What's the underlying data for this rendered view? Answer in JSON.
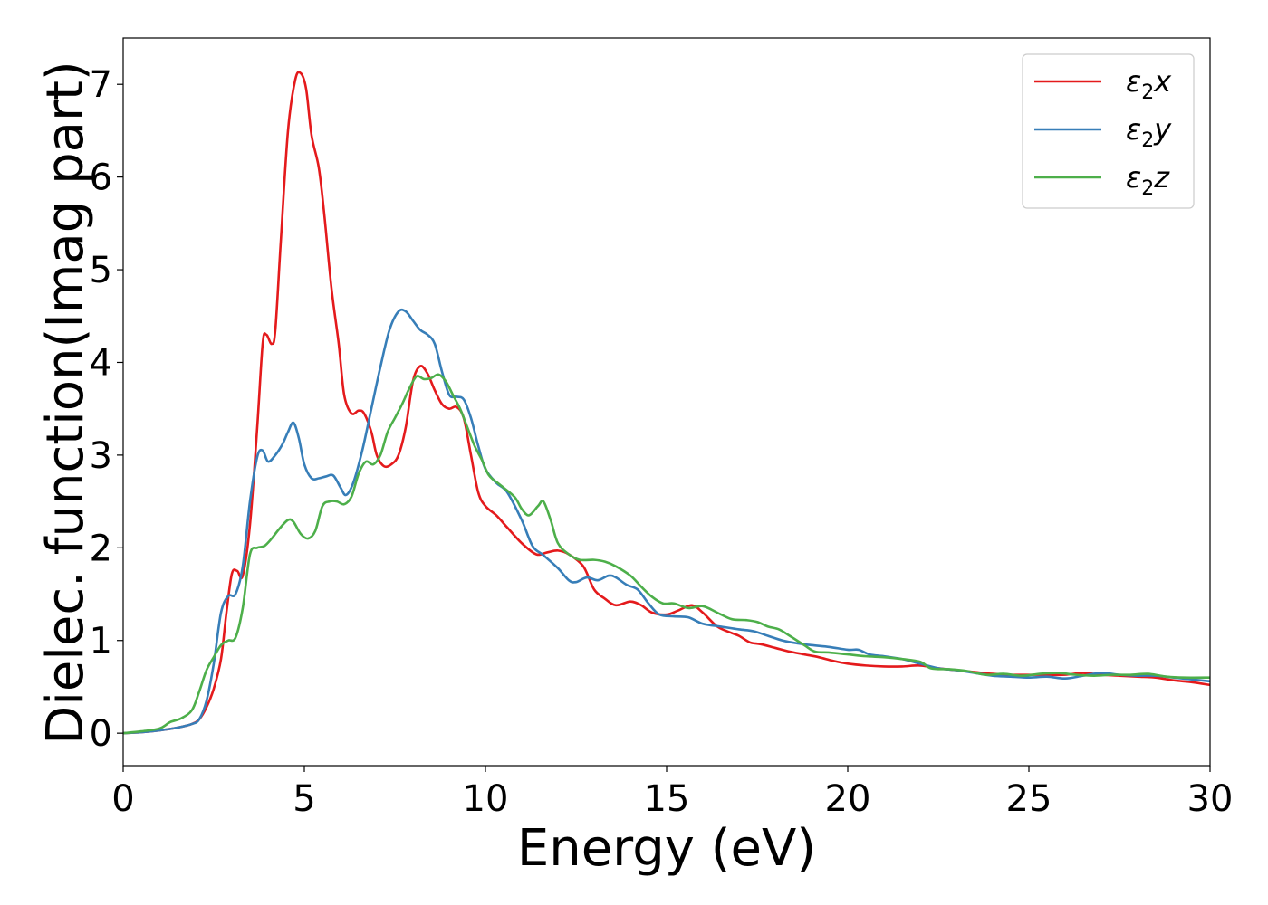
{
  "chart_data": {
    "type": "line",
    "xlabel": "Energy (eV)",
    "ylabel": "Dielec. function(Imag part)",
    "xlim": [
      0,
      30
    ],
    "ylim": [
      -0.35,
      7.5
    ],
    "xticks": [
      0,
      5,
      10,
      15,
      20,
      25,
      30
    ],
    "yticks": [
      0,
      1,
      2,
      3,
      4,
      5,
      6,
      7
    ],
    "grid": false,
    "legend_position": "top-right",
    "series": [
      {
        "name": "ε₂x",
        "legend_base": "ε",
        "legend_sub": "2",
        "legend_suffix": "x",
        "color": "#e41a1c",
        "points": [
          [
            0,
            0
          ],
          [
            0.5,
            0.01
          ],
          [
            1.0,
            0.03
          ],
          [
            1.5,
            0.06
          ],
          [
            1.9,
            0.1
          ],
          [
            2.1,
            0.15
          ],
          [
            2.3,
            0.28
          ],
          [
            2.5,
            0.48
          ],
          [
            2.7,
            0.8
          ],
          [
            2.85,
            1.3
          ],
          [
            3.0,
            1.72
          ],
          [
            3.15,
            1.75
          ],
          [
            3.3,
            1.7
          ],
          [
            3.5,
            2.25
          ],
          [
            3.7,
            3.3
          ],
          [
            3.85,
            4.2
          ],
          [
            3.95,
            4.3
          ],
          [
            4.1,
            4.2
          ],
          [
            4.2,
            4.35
          ],
          [
            4.35,
            5.3
          ],
          [
            4.55,
            6.5
          ],
          [
            4.75,
            7.05
          ],
          [
            4.9,
            7.12
          ],
          [
            5.05,
            6.95
          ],
          [
            5.2,
            6.45
          ],
          [
            5.4,
            6.1
          ],
          [
            5.55,
            5.6
          ],
          [
            5.75,
            4.8
          ],
          [
            5.95,
            4.2
          ],
          [
            6.1,
            3.65
          ],
          [
            6.3,
            3.45
          ],
          [
            6.5,
            3.48
          ],
          [
            6.65,
            3.45
          ],
          [
            6.85,
            3.25
          ],
          [
            7.0,
            3.0
          ],
          [
            7.2,
            2.88
          ],
          [
            7.4,
            2.9
          ],
          [
            7.6,
            3.0
          ],
          [
            7.8,
            3.3
          ],
          [
            8.0,
            3.8
          ],
          [
            8.2,
            3.96
          ],
          [
            8.4,
            3.88
          ],
          [
            8.6,
            3.7
          ],
          [
            8.8,
            3.55
          ],
          [
            9.0,
            3.5
          ],
          [
            9.2,
            3.52
          ],
          [
            9.4,
            3.4
          ],
          [
            9.6,
            3.0
          ],
          [
            9.8,
            2.6
          ],
          [
            10.0,
            2.45
          ],
          [
            10.3,
            2.35
          ],
          [
            10.6,
            2.22
          ],
          [
            11.0,
            2.05
          ],
          [
            11.4,
            1.93
          ],
          [
            11.7,
            1.95
          ],
          [
            12.0,
            1.97
          ],
          [
            12.3,
            1.93
          ],
          [
            12.7,
            1.8
          ],
          [
            13.0,
            1.55
          ],
          [
            13.3,
            1.45
          ],
          [
            13.6,
            1.38
          ],
          [
            14.0,
            1.42
          ],
          [
            14.3,
            1.38
          ],
          [
            14.6,
            1.3
          ],
          [
            15.0,
            1.28
          ],
          [
            15.3,
            1.32
          ],
          [
            15.7,
            1.38
          ],
          [
            16.0,
            1.3
          ],
          [
            16.4,
            1.15
          ],
          [
            16.8,
            1.08
          ],
          [
            17.0,
            1.05
          ],
          [
            17.3,
            0.98
          ],
          [
            17.6,
            0.96
          ],
          [
            18.0,
            0.92
          ],
          [
            18.4,
            0.88
          ],
          [
            18.8,
            0.85
          ],
          [
            19.2,
            0.82
          ],
          [
            19.6,
            0.78
          ],
          [
            20.0,
            0.75
          ],
          [
            20.5,
            0.73
          ],
          [
            21.0,
            0.72
          ],
          [
            21.5,
            0.72
          ],
          [
            22.0,
            0.73
          ],
          [
            22.5,
            0.7
          ],
          [
            23.0,
            0.68
          ],
          [
            23.5,
            0.66
          ],
          [
            24.0,
            0.64
          ],
          [
            24.5,
            0.63
          ],
          [
            25.0,
            0.63
          ],
          [
            25.5,
            0.63
          ],
          [
            26.0,
            0.63
          ],
          [
            26.5,
            0.65
          ],
          [
            27.0,
            0.63
          ],
          [
            27.5,
            0.62
          ],
          [
            28.0,
            0.61
          ],
          [
            28.5,
            0.6
          ],
          [
            29.0,
            0.57
          ],
          [
            29.5,
            0.55
          ],
          [
            30.0,
            0.52
          ]
        ]
      },
      {
        "name": "ε₂y",
        "legend_base": "ε",
        "legend_sub": "2",
        "legend_suffix": "y",
        "color": "#377eb8",
        "points": [
          [
            0,
            0
          ],
          [
            0.5,
            0.01
          ],
          [
            1.0,
            0.03
          ],
          [
            1.5,
            0.06
          ],
          [
            1.9,
            0.1
          ],
          [
            2.1,
            0.15
          ],
          [
            2.3,
            0.35
          ],
          [
            2.5,
            0.75
          ],
          [
            2.7,
            1.3
          ],
          [
            2.9,
            1.48
          ],
          [
            3.1,
            1.5
          ],
          [
            3.3,
            1.8
          ],
          [
            3.5,
            2.5
          ],
          [
            3.7,
            2.98
          ],
          [
            3.85,
            3.05
          ],
          [
            4.0,
            2.93
          ],
          [
            4.2,
            3.0
          ],
          [
            4.4,
            3.12
          ],
          [
            4.55,
            3.25
          ],
          [
            4.7,
            3.35
          ],
          [
            4.85,
            3.18
          ],
          [
            5.0,
            2.9
          ],
          [
            5.2,
            2.75
          ],
          [
            5.4,
            2.75
          ],
          [
            5.6,
            2.77
          ],
          [
            5.8,
            2.78
          ],
          [
            6.0,
            2.65
          ],
          [
            6.15,
            2.57
          ],
          [
            6.35,
            2.7
          ],
          [
            6.6,
            3.05
          ],
          [
            6.85,
            3.5
          ],
          [
            7.1,
            3.95
          ],
          [
            7.35,
            4.35
          ],
          [
            7.6,
            4.55
          ],
          [
            7.8,
            4.55
          ],
          [
            8.0,
            4.45
          ],
          [
            8.2,
            4.35
          ],
          [
            8.4,
            4.3
          ],
          [
            8.6,
            4.2
          ],
          [
            8.8,
            3.9
          ],
          [
            9.0,
            3.65
          ],
          [
            9.2,
            3.63
          ],
          [
            9.4,
            3.6
          ],
          [
            9.6,
            3.4
          ],
          [
            9.8,
            3.1
          ],
          [
            10.0,
            2.85
          ],
          [
            10.3,
            2.7
          ],
          [
            10.6,
            2.6
          ],
          [
            11.0,
            2.3
          ],
          [
            11.3,
            2.02
          ],
          [
            11.6,
            1.92
          ],
          [
            12.0,
            1.78
          ],
          [
            12.3,
            1.65
          ],
          [
            12.5,
            1.63
          ],
          [
            12.8,
            1.68
          ],
          [
            13.1,
            1.65
          ],
          [
            13.4,
            1.7
          ],
          [
            13.6,
            1.68
          ],
          [
            13.9,
            1.6
          ],
          [
            14.2,
            1.55
          ],
          [
            14.5,
            1.4
          ],
          [
            14.8,
            1.28
          ],
          [
            15.2,
            1.26
          ],
          [
            15.6,
            1.25
          ],
          [
            16.0,
            1.18
          ],
          [
            16.5,
            1.15
          ],
          [
            17.0,
            1.12
          ],
          [
            17.4,
            1.1
          ],
          [
            17.8,
            1.05
          ],
          [
            18.2,
            1.0
          ],
          [
            18.6,
            0.97
          ],
          [
            19.0,
            0.95
          ],
          [
            19.5,
            0.93
          ],
          [
            20.0,
            0.9
          ],
          [
            20.3,
            0.9
          ],
          [
            20.6,
            0.85
          ],
          [
            21.0,
            0.83
          ],
          [
            21.5,
            0.8
          ],
          [
            22.0,
            0.75
          ],
          [
            22.5,
            0.7
          ],
          [
            23.0,
            0.68
          ],
          [
            23.5,
            0.65
          ],
          [
            24.0,
            0.62
          ],
          [
            24.5,
            0.61
          ],
          [
            25.0,
            0.6
          ],
          [
            25.5,
            0.61
          ],
          [
            26.0,
            0.59
          ],
          [
            26.5,
            0.62
          ],
          [
            27.0,
            0.65
          ],
          [
            27.5,
            0.63
          ],
          [
            28.0,
            0.62
          ],
          [
            28.5,
            0.62
          ],
          [
            29.0,
            0.6
          ],
          [
            29.5,
            0.58
          ],
          [
            30.0,
            0.56
          ]
        ]
      },
      {
        "name": "ε₂z",
        "legend_base": "ε",
        "legend_sub": "2",
        "legend_suffix": "z",
        "color": "#4daf4a",
        "points": [
          [
            0,
            0
          ],
          [
            0.5,
            0.02
          ],
          [
            1.0,
            0.05
          ],
          [
            1.3,
            0.12
          ],
          [
            1.6,
            0.16
          ],
          [
            1.9,
            0.25
          ],
          [
            2.1,
            0.45
          ],
          [
            2.3,
            0.68
          ],
          [
            2.5,
            0.82
          ],
          [
            2.7,
            0.95
          ],
          [
            2.9,
            1.0
          ],
          [
            3.1,
            1.03
          ],
          [
            3.3,
            1.35
          ],
          [
            3.5,
            1.93
          ],
          [
            3.7,
            2.0
          ],
          [
            3.9,
            2.02
          ],
          [
            4.1,
            2.1
          ],
          [
            4.3,
            2.2
          ],
          [
            4.55,
            2.3
          ],
          [
            4.7,
            2.28
          ],
          [
            4.9,
            2.15
          ],
          [
            5.1,
            2.1
          ],
          [
            5.3,
            2.18
          ],
          [
            5.5,
            2.45
          ],
          [
            5.7,
            2.5
          ],
          [
            5.9,
            2.5
          ],
          [
            6.1,
            2.47
          ],
          [
            6.3,
            2.55
          ],
          [
            6.5,
            2.8
          ],
          [
            6.7,
            2.93
          ],
          [
            6.9,
            2.9
          ],
          [
            7.1,
            3.0
          ],
          [
            7.3,
            3.25
          ],
          [
            7.5,
            3.4
          ],
          [
            7.7,
            3.55
          ],
          [
            7.9,
            3.72
          ],
          [
            8.1,
            3.85
          ],
          [
            8.3,
            3.82
          ],
          [
            8.5,
            3.83
          ],
          [
            8.7,
            3.87
          ],
          [
            8.9,
            3.8
          ],
          [
            9.1,
            3.65
          ],
          [
            9.3,
            3.5
          ],
          [
            9.5,
            3.3
          ],
          [
            9.7,
            3.1
          ],
          [
            9.9,
            2.95
          ],
          [
            10.1,
            2.78
          ],
          [
            10.4,
            2.68
          ],
          [
            10.8,
            2.55
          ],
          [
            11.0,
            2.42
          ],
          [
            11.2,
            2.35
          ],
          [
            11.45,
            2.45
          ],
          [
            11.6,
            2.5
          ],
          [
            11.8,
            2.3
          ],
          [
            12.0,
            2.05
          ],
          [
            12.3,
            1.93
          ],
          [
            12.6,
            1.87
          ],
          [
            13.0,
            1.87
          ],
          [
            13.3,
            1.85
          ],
          [
            13.6,
            1.8
          ],
          [
            14.0,
            1.7
          ],
          [
            14.3,
            1.58
          ],
          [
            14.6,
            1.47
          ],
          [
            14.9,
            1.4
          ],
          [
            15.2,
            1.4
          ],
          [
            15.6,
            1.35
          ],
          [
            16.0,
            1.37
          ],
          [
            16.4,
            1.3
          ],
          [
            16.8,
            1.23
          ],
          [
            17.2,
            1.22
          ],
          [
            17.5,
            1.2
          ],
          [
            17.8,
            1.15
          ],
          [
            18.1,
            1.12
          ],
          [
            18.4,
            1.05
          ],
          [
            18.8,
            0.95
          ],
          [
            19.1,
            0.88
          ],
          [
            19.5,
            0.87
          ],
          [
            20.0,
            0.85
          ],
          [
            20.5,
            0.83
          ],
          [
            21.0,
            0.82
          ],
          [
            21.5,
            0.8
          ],
          [
            22.0,
            0.77
          ],
          [
            22.3,
            0.7
          ],
          [
            22.8,
            0.69
          ],
          [
            23.3,
            0.67
          ],
          [
            23.8,
            0.63
          ],
          [
            24.3,
            0.64
          ],
          [
            24.8,
            0.62
          ],
          [
            25.3,
            0.64
          ],
          [
            25.8,
            0.65
          ],
          [
            26.3,
            0.63
          ],
          [
            26.8,
            0.62
          ],
          [
            27.3,
            0.63
          ],
          [
            27.8,
            0.63
          ],
          [
            28.3,
            0.64
          ],
          [
            28.8,
            0.61
          ],
          [
            29.3,
            0.6
          ],
          [
            30.0,
            0.6
          ]
        ]
      }
    ]
  }
}
